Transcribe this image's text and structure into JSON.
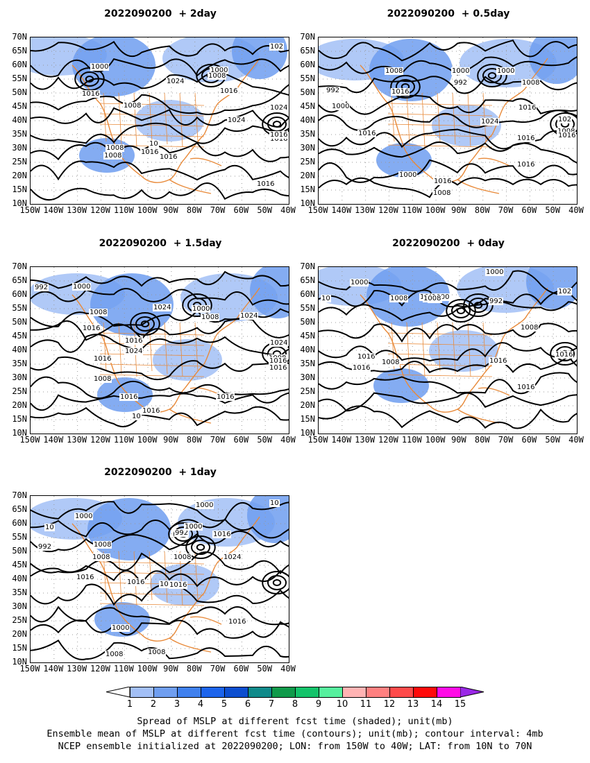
{
  "panels": [
    {
      "title": "2022090200  + 2day",
      "labels": [
        "1000",
        "1008",
        "1016",
        "1024",
        "1016",
        "1008",
        "1016",
        "1008",
        "1000",
        "1024",
        "1016",
        "1008",
        "1016",
        "1016",
        "1024",
        "102",
        "1016",
        "10"
      ]
    },
    {
      "title": "2022090200  + 0.5day",
      "labels": [
        "992",
        "1000",
        "1008",
        "1016",
        "1000",
        "992",
        "1000",
        "1008",
        "1016",
        "1024",
        "1016",
        "1016",
        "1008",
        "1016",
        "1000",
        "1016",
        "1008",
        "102",
        "1016"
      ]
    },
    {
      "title": "2022090200  + 1.5day",
      "labels": [
        "992",
        "1000",
        "1008",
        "1016",
        "1016",
        "1024",
        "1024",
        "1016",
        "1008",
        "1016",
        "1016",
        "1016",
        "1000",
        "1008",
        "1024",
        "1024",
        "1008",
        "1016",
        "1016",
        "10"
      ]
    },
    {
      "title": "2022090200  + 0day",
      "labels": [
        "1000",
        "1008",
        "1008",
        "1000",
        "992",
        "992",
        "1008",
        "1016",
        "1016",
        "1008",
        "1016",
        "1016",
        "1016",
        "1000",
        "1008",
        "10",
        "102"
      ]
    },
    {
      "title": "2022090200  + 1day",
      "labels": [
        "1000",
        "992",
        "1008",
        "1008",
        "1016",
        "1016",
        "1016",
        "992",
        "1000",
        "1008",
        "1000",
        "1016",
        "1024",
        "1016",
        "1016",
        "1000",
        "1008",
        "1008",
        "10",
        "10"
      ]
    }
  ],
  "lat_labels": [
    "70N",
    "65N",
    "60N",
    "55N",
    "50N",
    "45N",
    "40N",
    "35N",
    "30N",
    "25N",
    "20N",
    "15N",
    "10N"
  ],
  "lon_labels": [
    "150W",
    "140W",
    "130W",
    "120W",
    "110W",
    "100W",
    "90W",
    "80W",
    "70W",
    "60W",
    "50W",
    "40W"
  ],
  "colorbar": {
    "ticks": [
      "1",
      "2",
      "3",
      "4",
      "5",
      "6",
      "7",
      "8",
      "9",
      "10",
      "11",
      "12",
      "13",
      "14",
      "15"
    ],
    "colors": [
      "#ffffff",
      "#a2bff6",
      "#6f9ef0",
      "#3f80ee",
      "#1c64ec",
      "#0c4ed0",
      "#0f8a8a",
      "#0f9a4a",
      "#13c36a",
      "#56f09e",
      "#ffb3b3",
      "#ff8080",
      "#ff4a4a",
      "#ff0a0a",
      "#ff0ae6",
      "#9a28e6"
    ]
  },
  "caption": [
    "Spread of MSLP at different fcst time (shaded); unit(mb)",
    "Ensemble mean of MSLP at different fcst time (contours); unit(mb); contour interval: 4mb",
    "NCEP ensemble initialized at 2022090200; LON: from 150W to 40W; LAT: from 10N to 70N"
  ]
}
